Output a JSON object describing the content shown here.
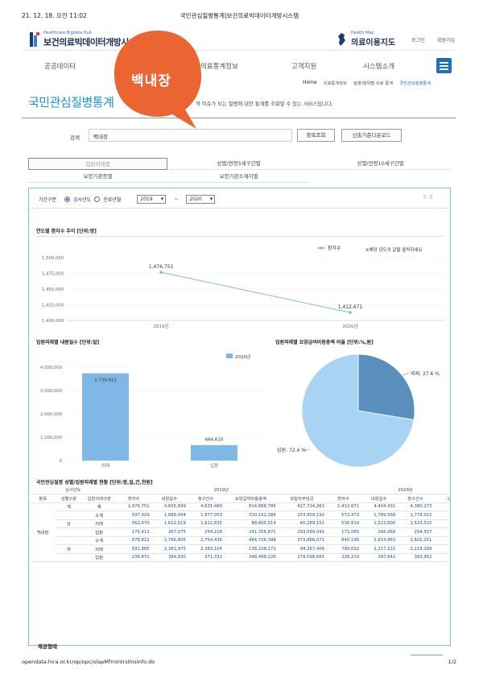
{
  "print_header": {
    "datetime": "21. 12. 18. 오전 11:02",
    "page_title": "국민관심질병통계|보건의료빅데이터개방시스템"
  },
  "print_footer": {
    "url": "opendata.hira.or.kr/op/opc/olapMfrnIntrsIlnsInfo.do",
    "page": "1/2"
  },
  "logo_left": {
    "small": "Healthcare Bigdata Hub",
    "big": "보건의료빅데이터개방시스"
  },
  "logo_right": {
    "small": "Health Map",
    "big": "의료이용지도"
  },
  "util": {
    "login": "로그인",
    "join": "회원가입"
  },
  "nav": [
    "공공데이터",
    "의료통계정보",
    "고객지원",
    "시스템소개"
  ],
  "breadcrumb": [
    "Home",
    "의료통계정보",
    "질병/행위별 의료 통계",
    "국민관심질병통계"
  ],
  "page_title": "국민관심질병통계",
  "page_desc": "적 이슈가 되는 질병에 대한 통계를 조회할 수 있는 서비스입니다.",
  "overlay_label": "백내장",
  "search": {
    "label": "검색",
    "value": "백내장",
    "btn_item": "항목조회",
    "btn_download": "산출기준다운로드"
  },
  "tabs": [
    "입원외래별",
    "성별/연령5세구간별",
    "성별/연령10세구간별",
    "요양기관종별",
    "요양기관소재지별"
  ],
  "period": {
    "label": "기간구분",
    "opt1": "심사년도",
    "opt2": "진료년월",
    "from": "2019",
    "sep": "~",
    "to": "2020",
    "search_btn": "조 회"
  },
  "chart1": {
    "title": "연도별 환자수 추이 [단위:명]",
    "legend": "환자수",
    "note": "※해당 년도의 값을 클릭하세요",
    "yticks": [
      "1,500,000",
      "1,475,000",
      "1,450,000",
      "1,425,000",
      "1,400,000"
    ],
    "xlabels": [
      "2019년",
      "2020년"
    ],
    "value_labels": [
      "1,476,751",
      "1,412,671"
    ]
  },
  "chart2": {
    "title": "입원외래별 내원일수 [단위:일]",
    "legend": "2020년",
    "yticks": [
      "4,000,000",
      "3,000,000",
      "2,000,000",
      "1,000,000",
      "0"
    ],
    "xlabels": [
      "외래",
      "입원"
    ],
    "value_labels": [
      "3,739,821",
      "664,610"
    ]
  },
  "chart3": {
    "title": "입원외래별 요양급여비용총액 비율 [단위:%,원]",
    "labels": [
      "외래: 27.6 %",
      "입원: 72.4 %"
    ]
  },
  "chart_data": [
    {
      "type": "line",
      "title": "연도별 환자수 추이 [단위:명]",
      "x": [
        "2019년",
        "2020년"
      ],
      "series": [
        {
          "name": "환자수",
          "values": [
            1476751,
            1412671
          ]
        }
      ],
      "ylim": [
        1400000,
        1500000
      ],
      "color": "#7fb8e6"
    },
    {
      "type": "bar",
      "title": "입원외래별 내원일수 [단위:일]",
      "categories": [
        "외래",
        "입원"
      ],
      "series": [
        {
          "name": "2020년",
          "values": [
            3739821,
            664610
          ]
        }
      ],
      "ylim": [
        0,
        4000000
      ],
      "color": "#7fb8e6"
    },
    {
      "type": "pie",
      "title": "입원외래별 요양급여비용총액 비율 [단위:%,원]",
      "categories": [
        "외래",
        "입원"
      ],
      "values": [
        27.6,
        72.4
      ],
      "colors": [
        "#5a8fbd",
        "#a9d3f2"
      ]
    }
  ],
  "table": {
    "title": "국민관심질병 성별/입원외래별 현황 [단위:명,일,건,천원]",
    "h_year_label": "심사년도",
    "years": [
      "2019년",
      "2020년"
    ],
    "cols": [
      "항목",
      "성별구분",
      "입원외래구분",
      "환자수",
      "내원일수",
      "청구건수",
      "요양급여비용총액",
      "보험자부담금",
      "환자수",
      "내원일수",
      "청구건수",
      "요양급여비용"
    ],
    "item": "백내장",
    "rows": [
      {
        "sex": "계",
        "type": "계",
        "v": [
          "1,476,751",
          "4,655,899",
          "4,631,489",
          "814,888,785",
          "627,724,263",
          "1,412,671",
          "4,404,431",
          "4,380,273",
          "906,"
        ]
      },
      {
        "sex": "",
        "type": "소계",
        "v": [
          "597,929",
          "1,889,094",
          "1,877,053",
          "330,162,386",
          "253,858,192",
          "572,473",
          "1,789,568",
          "1,778,022",
          "363,"
        ]
      },
      {
        "sex": "남",
        "type": "외래",
        "v": [
          "562,670",
          "1,622,019",
          "1,622,835",
          "88,805,514",
          "60,289,151",
          "536,819",
          "1,522,600",
          "1,523,515",
          "95,"
        ]
      },
      {
        "sex": "",
        "type": "입원",
        "v": [
          "175,413",
          "267,075",
          "254,218",
          "241,356,872",
          "193,569,042",
          "172,065",
          "266,968",
          "254,507",
          "268,"
        ]
      },
      {
        "sex": "",
        "type": "소계",
        "v": [
          "878,822",
          "2,766,805",
          "2,754,436",
          "484,726,398",
          "373,866,071",
          "840,198",
          "2,614,863",
          "2,602,251",
          "542,"
        ]
      },
      {
        "sex": "여",
        "type": "외래",
        "v": [
          "831,885",
          "2,381,975",
          "2,383,104",
          "136,228,172",
          "94,267,406",
          "790,602",
          "2,217,221",
          "2,218,299",
          "145,"
        ]
      },
      {
        "sex": "",
        "type": "입원",
        "v": [
          "236,871",
          "384,830",
          "371,332",
          "348,498,226",
          "279,598,665",
          "238,219",
          "397,642",
          "383,952",
          "397,"
        ]
      }
    ]
  },
  "footer_label": "제공형태"
}
